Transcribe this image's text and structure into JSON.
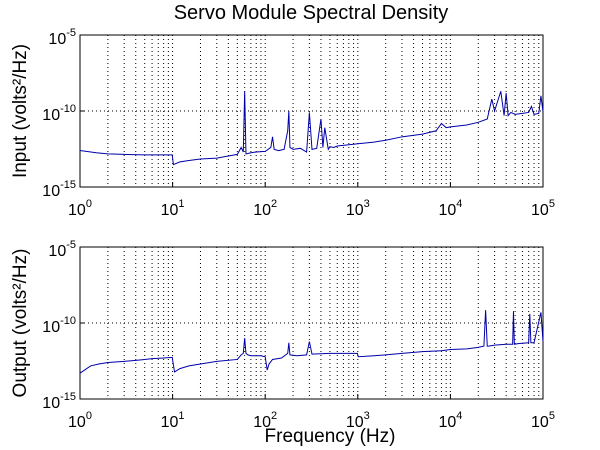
{
  "chart_data": {
    "type": "line",
    "title": "Servo Module Spectral Density",
    "xlabel": "Frequency (Hz)",
    "x_scale": "log",
    "y_scale": "log",
    "grid": "dotted",
    "line_color": "#0000aa",
    "panels": [
      {
        "ylabel": "Input (volts²/Hz)",
        "xlim": [
          1,
          100000
        ],
        "ylim": [
          1e-15,
          1e-05
        ],
        "x_ticks": [
          {
            "base": "10",
            "exp": "0"
          },
          {
            "base": "10",
            "exp": "1"
          },
          {
            "base": "10",
            "exp": "2"
          },
          {
            "base": "10",
            "exp": "3"
          },
          {
            "base": "10",
            "exp": "4"
          },
          {
            "base": "10",
            "exp": "5"
          }
        ],
        "y_ticks": [
          {
            "value": 1e-15,
            "base": "10",
            "exp": "-15"
          },
          {
            "value": 1e-10,
            "base": "10",
            "exp": "-10"
          },
          {
            "value": 1e-05,
            "base": "10",
            "exp": "-5"
          }
        ],
        "series": [
          {
            "x": [
              1,
              1.5,
              2,
              3,
              5,
              7,
              9.9,
              10.2,
              12,
              15,
              20,
              30,
              40,
              50,
              55,
              58,
              60,
              62,
              65,
              70,
              80,
              100,
              115,
              120,
              125,
              140,
              160,
              175,
              180,
              185,
              200,
              240,
              280,
              300,
              320,
              360,
              400,
              420,
              440,
              480,
              500,
              550,
              600,
              800,
              1000,
              1500,
              2000,
              3000,
              5000,
              7000,
              8000,
              9000,
              10000,
              15000,
              20000,
              25000,
              28000,
              30000,
              35000,
              38000,
              40000,
              42000,
              45000,
              50000,
              60000,
              70000,
              75000,
              80000,
              90000,
              95000,
              100000
            ],
            "values": [
              2.5e-13,
              1.8e-13,
              1.5e-13,
              1.4e-13,
              1.3e-13,
              1.3e-13,
              1.3e-13,
              3e-14,
              4.5e-14,
              5.5e-14,
              7e-14,
              8e-14,
              1.1e-13,
              1.4e-13,
              4e-13,
              2e-13,
              2e-09,
              1.5e-13,
              1.6e-13,
              1.8e-13,
              2e-13,
              2.2e-13,
              4e-13,
              2e-12,
              3e-13,
              2.5e-13,
              3e-13,
              5e-12,
              1e-10,
              4e-13,
              3e-13,
              3.5e-13,
              2e-13,
              8e-11,
              3e-13,
              3.5e-13,
              3e-11,
              4e-13,
              8e-12,
              3e-13,
              4.5e-13,
              4e-13,
              5e-13,
              6e-13,
              7e-13,
              9e-13,
              1.2e-12,
              2e-12,
              3e-12,
              5e-12,
              1.5e-11,
              8e-12,
              9e-12,
              1.2e-11,
              1.8e-11,
              3e-11,
              6e-10,
              1e-10,
              2e-09,
              5e-11,
              1.5e-09,
              5e-11,
              8e-11,
              6e-11,
              7e-11,
              8e-11,
              2e-10,
              6e-11,
              7e-11,
              1e-09,
              9e-11
            ]
          }
        ]
      },
      {
        "ylabel": "Output (volts²/Hz)",
        "xlim": [
          1,
          100000
        ],
        "ylim": [
          1e-15,
          1e-05
        ],
        "x_ticks": [
          {
            "base": "10",
            "exp": "0"
          },
          {
            "base": "10",
            "exp": "1"
          },
          {
            "base": "10",
            "exp": "2"
          },
          {
            "base": "10",
            "exp": "3"
          },
          {
            "base": "10",
            "exp": "4"
          },
          {
            "base": "10",
            "exp": "5"
          }
        ],
        "y_ticks": [
          {
            "value": 1e-15,
            "base": "10",
            "exp": "-15"
          },
          {
            "value": 1e-10,
            "base": "10",
            "exp": "-10"
          },
          {
            "value": 1e-05,
            "base": "10",
            "exp": "-5"
          }
        ],
        "series": [
          {
            "x": [
              1,
              1.3,
              1.6,
              2,
              3,
              4,
              5,
              6,
              8,
              9.9,
              10.5,
              12,
              15,
              20,
              30,
              50,
              55,
              58,
              60,
              62,
              65,
              70,
              90,
              100,
              105,
              110,
              120,
              150,
              175,
              180,
              185,
              220,
              280,
              300,
              320,
              500,
              990,
              1010,
              1500,
              2000,
              3000,
              5000,
              8000,
              10000,
              15000,
              20000,
              23000,
              24000,
              25000,
              26000,
              30000,
              40000,
              47000,
              48000,
              49000,
              55000,
              70000,
              72000,
              74000,
              80000,
              95000,
              100000
            ],
            "values": [
              5e-14,
              1.5e-13,
              2e-13,
              2.5e-13,
              3e-13,
              3.5e-13,
              4e-13,
              4.5e-13,
              5e-13,
              5.5e-13,
              6e-14,
              1e-13,
              1.5e-13,
              2e-13,
              3e-13,
              4e-13,
              8e-13,
              1e-12,
              1e-11,
              1e-12,
              8e-13,
              7e-13,
              7e-13,
              6e-13,
              8e-14,
              2e-13,
              4e-13,
              5e-13,
              1e-12,
              5e-12,
              8e-13,
              7e-13,
              8e-13,
              6e-12,
              9e-13,
              1e-12,
              1e-12,
              6e-13,
              7e-13,
              8e-13,
              1e-12,
              1.3e-12,
              1.5e-12,
              1.8e-12,
              2e-12,
              2.5e-12,
              3e-12,
              7e-10,
              3e-12,
              3e-12,
              3.5e-12,
              4e-12,
              4e-12,
              6e-10,
              4e-12,
              4.5e-12,
              5e-12,
              4e-10,
              5e-12,
              5e-12,
              5e-10,
              6e-12
            ]
          }
        ]
      }
    ]
  }
}
